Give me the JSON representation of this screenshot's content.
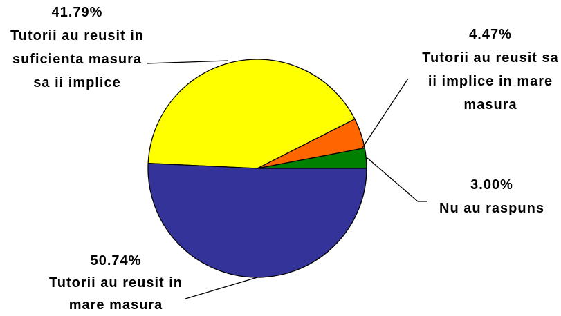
{
  "chart_data": {
    "type": "pie",
    "categories": [
      "Nu au raspuns",
      "Tutorii au reusit sa ii implice in mare masura",
      "Tutorii au reusit in suficienta masura sa ii implice",
      "Tutorii au reusit in mare masura"
    ],
    "values": [
      3.0,
      4.47,
      41.79,
      50.74
    ],
    "value_labels": [
      "3.00%",
      "4.47%",
      "41.79%",
      "50.74%"
    ],
    "colors": [
      "#008000",
      "#ff6600",
      "#ffff00",
      "#333399"
    ]
  }
}
